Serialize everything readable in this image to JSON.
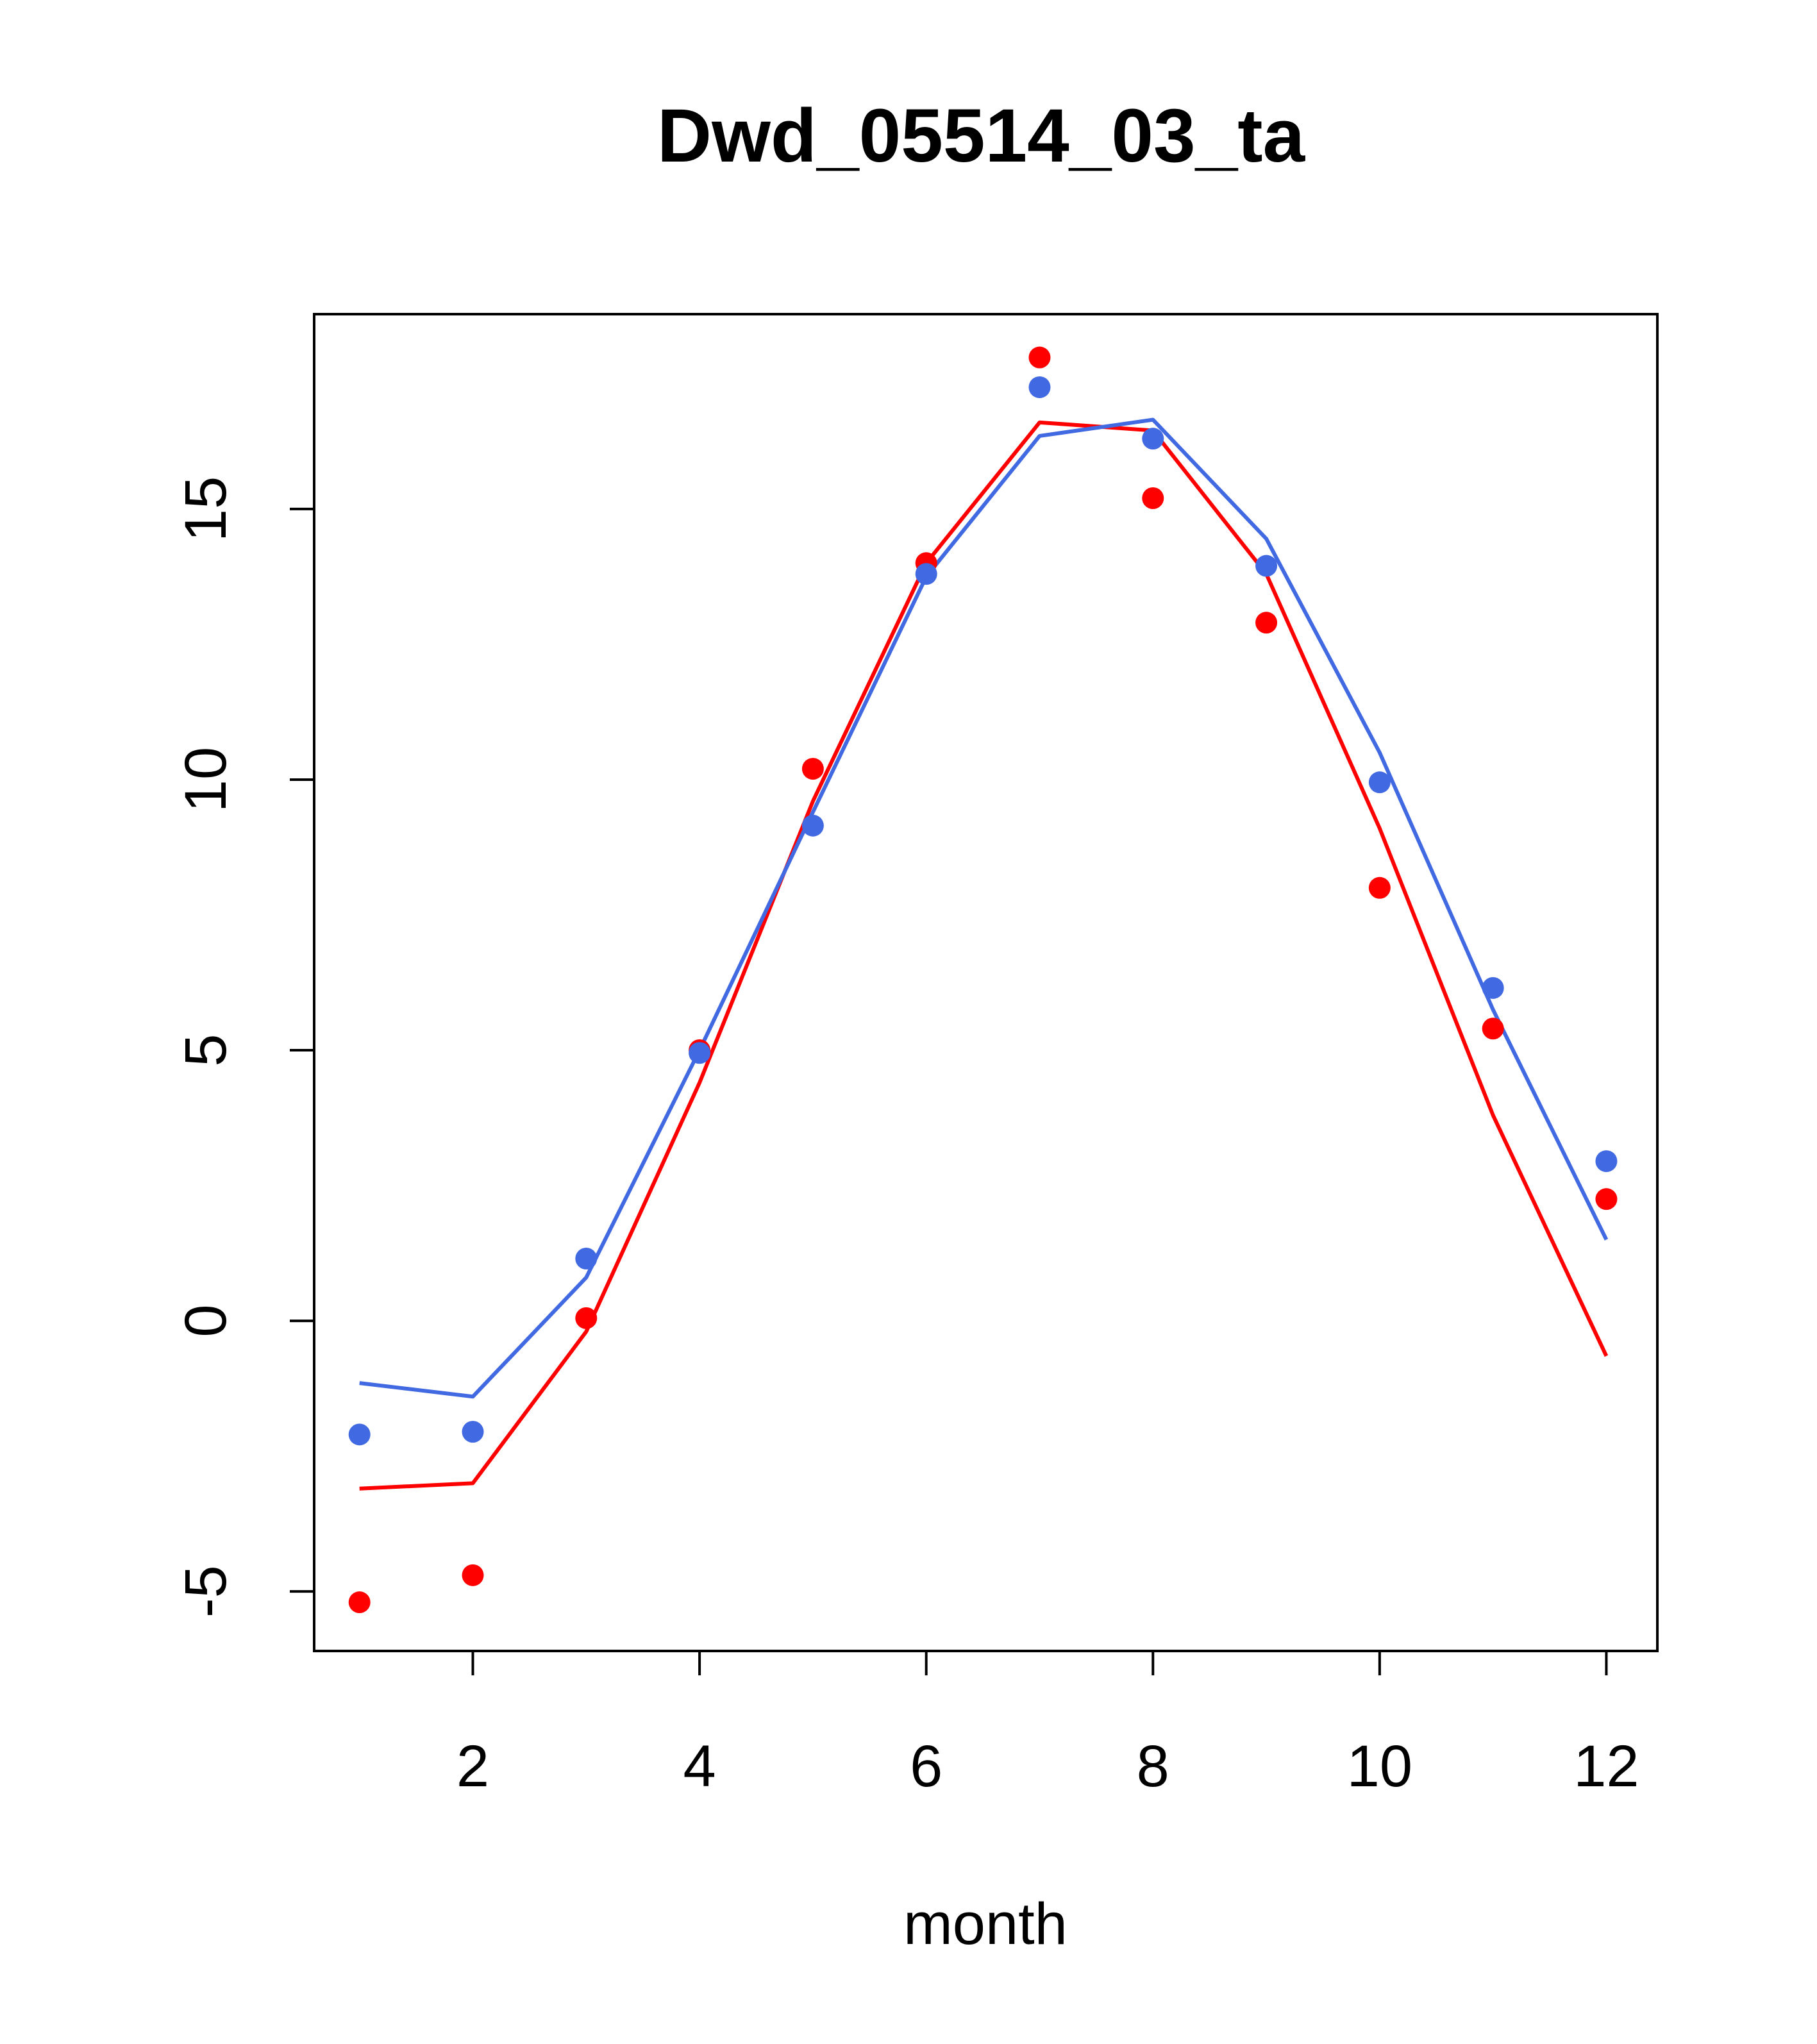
{
  "chart_data": {
    "type": "line",
    "title": "Dwd_05514_03_ta",
    "xlabel": "month",
    "ylabel": "",
    "xlim": [
      0.6,
      12.45
    ],
    "ylim": [
      -6.1,
      18.6
    ],
    "xticks": [
      2,
      4,
      6,
      8,
      10,
      12
    ],
    "xtick_labels": [
      "2",
      "4",
      "6",
      "8",
      "10",
      "12"
    ],
    "yticks": [
      -5,
      0,
      5,
      10,
      15
    ],
    "ytick_labels": [
      "-5",
      "0",
      "5",
      "10",
      "15"
    ],
    "grid": false,
    "legend": "none",
    "x": [
      1,
      2,
      3,
      4,
      5,
      6,
      7,
      8,
      9,
      10,
      11,
      12
    ],
    "series": [
      {
        "color": "#ff0000",
        "kind": "points",
        "values": [
          -5.2,
          -4.7,
          0.05,
          5.0,
          10.2,
          14.0,
          17.8,
          15.2,
          12.9,
          8.0,
          5.4,
          2.25
        ]
      },
      {
        "color": "#4169e1",
        "kind": "points",
        "values": [
          -2.1,
          -2.05,
          1.15,
          4.95,
          9.15,
          13.8,
          17.25,
          16.3,
          13.95,
          9.95,
          6.15,
          2.95
        ]
      },
      {
        "color": "#ff0000",
        "kind": "line",
        "values": [
          -3.1,
          -3.0,
          -0.2,
          4.4,
          9.6,
          14.0,
          16.6,
          16.45,
          13.8,
          9.1,
          3.8,
          -0.65
        ]
      },
      {
        "color": "#4169e1",
        "kind": "line",
        "values": [
          -1.15,
          -1.4,
          0.8,
          5.0,
          9.4,
          13.75,
          16.35,
          16.65,
          14.45,
          10.5,
          5.75,
          1.5
        ]
      }
    ]
  }
}
